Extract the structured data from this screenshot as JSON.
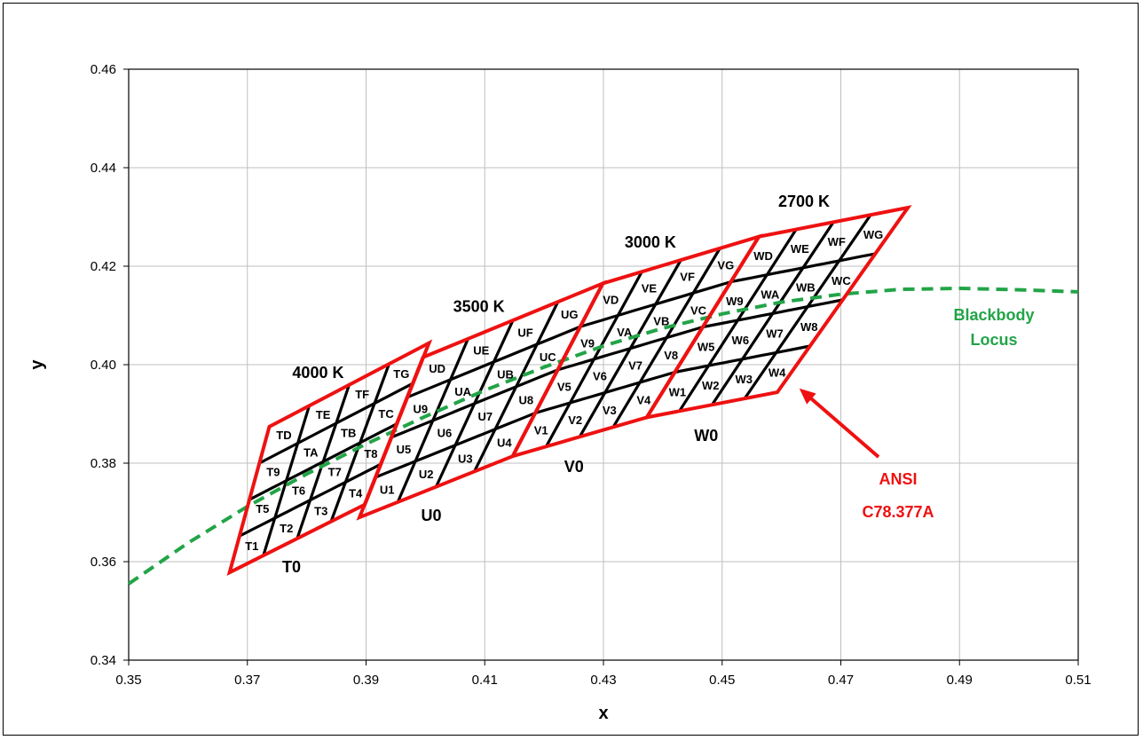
{
  "chart_data": {
    "type": "scatter",
    "xlabel": "x",
    "ylabel": "y",
    "xlim": [
      0.35,
      0.51
    ],
    "ylim": [
      0.34,
      0.46
    ],
    "x_ticks": [
      "0.35",
      "0.37",
      "0.39",
      "0.41",
      "0.43",
      "0.45",
      "0.47",
      "0.49",
      "0.51"
    ],
    "y_ticks": [
      "0.34",
      "0.36",
      "0.38",
      "0.40",
      "0.42",
      "0.44",
      "0.46"
    ],
    "grid": true,
    "colors": {
      "black": "#000000",
      "red": "#ee1111",
      "green": "#22a447",
      "grid": "#bfbfbf"
    },
    "blackbody_locus": {
      "label_line1": "Blackbody",
      "label_line2": "Locus",
      "x": [
        0.35,
        0.36,
        0.37,
        0.38,
        0.39,
        0.4,
        0.41,
        0.42,
        0.43,
        0.44,
        0.45,
        0.46,
        0.47,
        0.48,
        0.49,
        0.5,
        0.51
      ],
      "y": [
        0.3555,
        0.3638,
        0.3712,
        0.3778,
        0.3839,
        0.3895,
        0.3948,
        0.3995,
        0.4038,
        0.4074,
        0.4103,
        0.4127,
        0.4143,
        0.4153,
        0.4155,
        0.4152,
        0.4148
      ]
    },
    "ansi_label_line1": "ANSI",
    "ansi_label_line2": "C78.377A",
    "quadrangles": [
      {
        "cct": "4000 K",
        "row": "T0",
        "prefix": "T",
        "corners": {
          "bl": [
            0.367,
            0.3578
          ],
          "tl": [
            0.3737,
            0.3874
          ],
          "tr": [
            0.4006,
            0.4044
          ],
          "br": [
            0.3898,
            0.3716
          ]
        }
      },
      {
        "cct": "3500 K",
        "row": "U0",
        "prefix": "U",
        "corners": {
          "bl": [
            0.3889,
            0.369
          ],
          "tl": [
            0.3996,
            0.4015
          ],
          "tr": [
            0.4299,
            0.4165
          ],
          "br": [
            0.4147,
            0.3814
          ]
        }
      },
      {
        "cct": "3000 K",
        "row": "V0",
        "prefix": "V",
        "corners": {
          "bl": [
            0.4147,
            0.3814
          ],
          "tl": [
            0.4299,
            0.4165
          ],
          "tr": [
            0.4562,
            0.426
          ],
          "br": [
            0.4373,
            0.3893
          ]
        }
      },
      {
        "cct": "2700 K",
        "row": "W0",
        "prefix": "W",
        "corners": {
          "bl": [
            0.4373,
            0.3893
          ],
          "tl": [
            0.4562,
            0.426
          ],
          "tr": [
            0.4813,
            0.4319
          ],
          "br": [
            0.4593,
            0.3944
          ]
        }
      }
    ],
    "sub_bins": [
      [
        "1",
        "2",
        "3",
        "4"
      ],
      [
        "5",
        "6",
        "7",
        "8"
      ],
      [
        "9",
        "A",
        "B",
        "C"
      ],
      [
        "D",
        "E",
        "F",
        "G"
      ]
    ]
  }
}
